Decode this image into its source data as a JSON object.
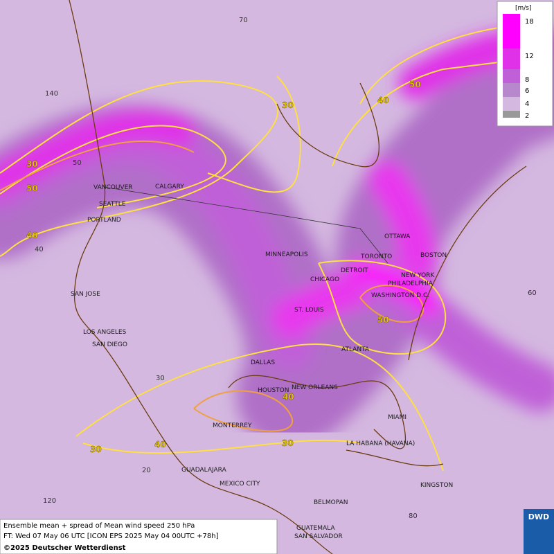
{
  "map": {
    "cities": [
      "VANCOUVER",
      "CALGARY",
      "SEATTLE",
      "PORTLAND",
      "MINNEAPOLIS",
      "TORONTO",
      "OTTAWA",
      "DETROIT",
      "CHICAGO",
      "BOSTON",
      "NEW YORK",
      "PHILADELPHIA",
      "WASHINGTON D.C.",
      "ST. LOUIS",
      "SAN JOSE",
      "LOS ANGELES",
      "SAN DIEGO",
      "DALLAS",
      "ATLANTA",
      "HOUSTON",
      "NEW ORLEANS",
      "MIAMI",
      "MONTERREY",
      "LA HABANA (HAVANA)",
      "GUADALAJARA",
      "MEXICO CITY",
      "KINGSTON",
      "BELMOPAN",
      "GUATEMALA",
      "SAN SALVADOR"
    ],
    "grid_labels": [
      70,
      140,
      50,
      40,
      60,
      30,
      20,
      120,
      80
    ],
    "contour_labels": [
      30,
      50,
      40,
      30,
      40,
      50,
      50,
      40,
      40,
      30,
      30
    ]
  },
  "legend": {
    "unit": "[m/s]",
    "levels": [
      18,
      12,
      8,
      6,
      4,
      2
    ]
  },
  "footer": {
    "line1": "Ensemble mean + spread of Mean wind speed 250 hPa",
    "line2": "FT: Wed 07 May 06 UTC [ICON EPS 2025 May 04 00UTC +78h]",
    "copyright": "©2025 Deutscher Wetterdienst"
  },
  "logo": "DWD"
}
